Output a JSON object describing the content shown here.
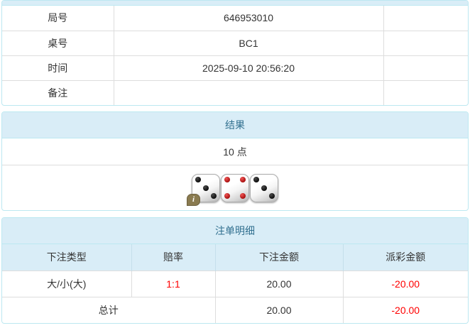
{
  "colors": {
    "panel_border": "#bce8f1",
    "heading_bg": "#d9edf7",
    "heading_text": "#31708f",
    "cell_border": "#dddddd",
    "negative_text": "#ff0000",
    "info_badge_bg": "#8a7b50"
  },
  "info_panel": {
    "rows": [
      {
        "label": "局号",
        "value": "646953010"
      },
      {
        "label": "桌号",
        "value": "BC1"
      },
      {
        "label": "时间",
        "value": "2025-09-10 20:56:20"
      },
      {
        "label": "备注",
        "value": ""
      }
    ]
  },
  "result_panel": {
    "title": "结果",
    "points": "10 点",
    "dice": [
      {
        "value": 3,
        "color": "black"
      },
      {
        "value": 4,
        "color": "red"
      },
      {
        "value": 3,
        "color": "black"
      }
    ],
    "info_icon": "i"
  },
  "bets_panel": {
    "title": "注单明细",
    "columns": [
      "下注类型",
      "赔率",
      "下注金额",
      "派彩金额"
    ],
    "rows": [
      {
        "type": "大/小(大)",
        "odds": "1:1",
        "bet": "20.00",
        "payout": "-20.00"
      }
    ],
    "total": {
      "label": "总计",
      "bet": "20.00",
      "payout": "-20.00"
    }
  }
}
